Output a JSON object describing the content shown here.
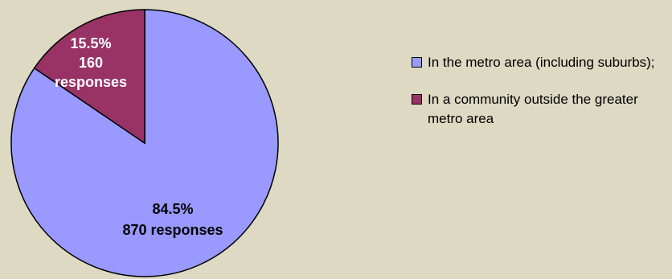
{
  "chart_data": {
    "type": "pie",
    "title": "",
    "slices": [
      {
        "name": "In the metro area (including suburbs);",
        "percent": 84.5,
        "responses": 870,
        "color": "#9999FF",
        "label_lines": [
          "84.5%",
          "870 responses"
        ],
        "label_color": "#000000"
      },
      {
        "name": "In a community outside the greater metro area",
        "percent": 15.5,
        "responses": 160,
        "color": "#993366",
        "label_lines": [
          "15.5%",
          "160",
          "responses"
        ],
        "label_color": "#FFFFFF"
      }
    ],
    "legend_position": "right"
  }
}
